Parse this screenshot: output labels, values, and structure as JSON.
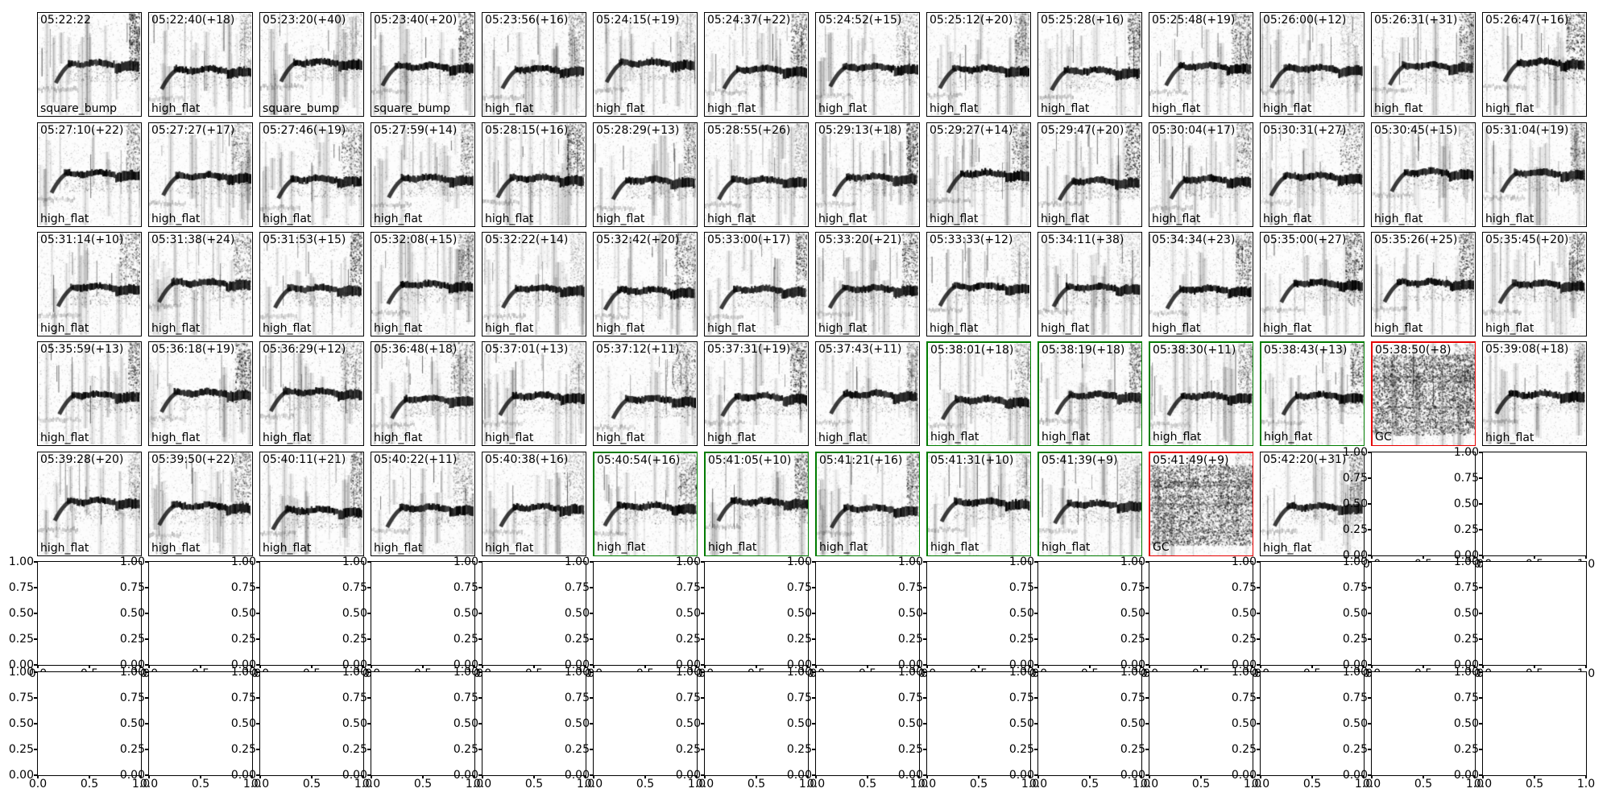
{
  "chart_data": {
    "type": "table",
    "title": "",
    "description": "7x14 grid of subplots: rows 1-5 show noisy grayscale spectrogram thumbnails annotated with a timestamp (top-left) and a class label (bottom-left); some subplots are highlighted with green or red borders (red ones labeled GC). Remaining subplots are empty default 0-1 axes.",
    "grid": {
      "n_rows": 7,
      "n_cols": 14
    },
    "y_ticks": [
      "1.00",
      "0.75",
      "0.50",
      "0.25",
      "0.00"
    ],
    "x_ticks": [
      "0.0",
      "0.5",
      "1.0"
    ],
    "border_colors": {
      "black": "#000000",
      "green": "#007b00",
      "red": "#e60000"
    },
    "rows": [
      {
        "cells": [
          {
            "type": "image",
            "time": "05:22:22",
            "label": "square_bump",
            "border": "black"
          },
          {
            "type": "image",
            "time": "05:22:40(+18)",
            "label": "high_flat",
            "border": "black"
          },
          {
            "type": "image",
            "time": "05:23:20(+40)",
            "label": "square_bump",
            "border": "black"
          },
          {
            "type": "image",
            "time": "05:23:40(+20)",
            "label": "square_bump",
            "border": "black"
          },
          {
            "type": "image",
            "time": "05:23:56(+16)",
            "label": "high_flat",
            "border": "black"
          },
          {
            "type": "image",
            "time": "05:24:15(+19)",
            "label": "high_flat",
            "border": "black"
          },
          {
            "type": "image",
            "time": "05:24:37(+22)",
            "label": "high_flat",
            "border": "black"
          },
          {
            "type": "image",
            "time": "05:24:52(+15)",
            "label": "high_flat",
            "border": "black"
          },
          {
            "type": "image",
            "time": "05:25:12(+20)",
            "label": "high_flat",
            "border": "black"
          },
          {
            "type": "image",
            "time": "05:25:28(+16)",
            "label": "high_flat",
            "border": "black"
          },
          {
            "type": "image",
            "time": "05:25:48(+19)",
            "label": "high_flat",
            "border": "black"
          },
          {
            "type": "image",
            "time": "05:26:00(+12)",
            "label": "high_flat",
            "border": "black"
          },
          {
            "type": "image",
            "time": "05:26:31(+31)",
            "label": "high_flat",
            "border": "black"
          },
          {
            "type": "image",
            "time": "05:26:47(+16)",
            "label": "high_flat",
            "border": "black"
          }
        ]
      },
      {
        "cells": [
          {
            "type": "image",
            "time": "05:27:10(+22)",
            "label": "high_flat",
            "border": "black"
          },
          {
            "type": "image",
            "time": "05:27:27(+17)",
            "label": "high_flat",
            "border": "black"
          },
          {
            "type": "image",
            "time": "05:27:46(+19)",
            "label": "high_flat",
            "border": "black"
          },
          {
            "type": "image",
            "time": "05:27:59(+14)",
            "label": "high_flat",
            "border": "black"
          },
          {
            "type": "image",
            "time": "05:28:15(+16)",
            "label": "high_flat",
            "border": "black"
          },
          {
            "type": "image",
            "time": "05:28:29(+13)",
            "label": "high_flat",
            "border": "black"
          },
          {
            "type": "image",
            "time": "05:28:55(+26)",
            "label": "high_flat",
            "border": "black"
          },
          {
            "type": "image",
            "time": "05:29:13(+18)",
            "label": "high_flat",
            "border": "black"
          },
          {
            "type": "image",
            "time": "05:29:27(+14)",
            "label": "high_flat",
            "border": "black"
          },
          {
            "type": "image",
            "time": "05:29:47(+20)",
            "label": "high_flat",
            "border": "black"
          },
          {
            "type": "image",
            "time": "05:30:04(+17)",
            "label": "high_flat",
            "border": "black"
          },
          {
            "type": "image",
            "time": "05:30:31(+27)",
            "label": "high_flat",
            "border": "black"
          },
          {
            "type": "image",
            "time": "05:30:45(+15)",
            "label": "high_flat",
            "border": "black"
          },
          {
            "type": "image",
            "time": "05:31:04(+19)",
            "label": "high_flat",
            "border": "black"
          }
        ]
      },
      {
        "cells": [
          {
            "type": "image",
            "time": "05:31:14(+10)",
            "label": "high_flat",
            "border": "black"
          },
          {
            "type": "image",
            "time": "05:31:38(+24)",
            "label": "high_flat",
            "border": "black"
          },
          {
            "type": "image",
            "time": "05:31:53(+15)",
            "label": "high_flat",
            "border": "black"
          },
          {
            "type": "image",
            "time": "05:32:08(+15)",
            "label": "high_flat",
            "border": "black"
          },
          {
            "type": "image",
            "time": "05:32:22(+14)",
            "label": "high_flat",
            "border": "black"
          },
          {
            "type": "image",
            "time": "05:32:42(+20)",
            "label": "high_flat",
            "border": "black"
          },
          {
            "type": "image",
            "time": "05:33:00(+17)",
            "label": "high_flat",
            "border": "black"
          },
          {
            "type": "image",
            "time": "05:33:20(+21)",
            "label": "high_flat",
            "border": "black"
          },
          {
            "type": "image",
            "time": "05:33:33(+12)",
            "label": "high_flat",
            "border": "black"
          },
          {
            "type": "image",
            "time": "05:34:11(+38)",
            "label": "high_flat",
            "border": "black"
          },
          {
            "type": "image",
            "time": "05:34:34(+23)",
            "label": "high_flat",
            "border": "black"
          },
          {
            "type": "image",
            "time": "05:35:00(+27)",
            "label": "high_flat",
            "border": "black"
          },
          {
            "type": "image",
            "time": "05:35:26(+25)",
            "label": "high_flat",
            "border": "black"
          },
          {
            "type": "image",
            "time": "05:35:45(+20)",
            "label": "high_flat",
            "border": "black"
          }
        ]
      },
      {
        "cells": [
          {
            "type": "image",
            "time": "05:35:59(+13)",
            "label": "high_flat",
            "border": "black"
          },
          {
            "type": "image",
            "time": "05:36:18(+19)",
            "label": "high_flat",
            "border": "black"
          },
          {
            "type": "image",
            "time": "05:36:29(+12)",
            "label": "high_flat",
            "border": "black"
          },
          {
            "type": "image",
            "time": "05:36:48(+18)",
            "label": "high_flat",
            "border": "black"
          },
          {
            "type": "image",
            "time": "05:37:01(+13)",
            "label": "high_flat",
            "border": "black"
          },
          {
            "type": "image",
            "time": "05:37:12(+11)",
            "label": "high_flat",
            "border": "black"
          },
          {
            "type": "image",
            "time": "05:37:31(+19)",
            "label": "high_flat",
            "border": "black"
          },
          {
            "type": "image",
            "time": "05:37:43(+11)",
            "label": "high_flat",
            "border": "black"
          },
          {
            "type": "image",
            "time": "05:38:01(+18)",
            "label": "high_flat",
            "border": "green"
          },
          {
            "type": "image",
            "time": "05:38:19(+18)",
            "label": "high_flat",
            "border": "green"
          },
          {
            "type": "image",
            "time": "05:38:30(+11)",
            "label": "high_flat",
            "border": "green"
          },
          {
            "type": "image",
            "time": "05:38:43(+13)",
            "label": "high_flat",
            "border": "green"
          },
          {
            "type": "image",
            "time": "05:38:50(+8)",
            "label": "GC",
            "border": "red",
            "variant": "dense"
          },
          {
            "type": "image",
            "time": "05:39:08(+18)",
            "label": "high_flat",
            "border": "black"
          }
        ]
      },
      {
        "cells": [
          {
            "type": "image",
            "time": "05:39:28(+20)",
            "label": "high_flat",
            "border": "black"
          },
          {
            "type": "image",
            "time": "05:39:50(+22)",
            "label": "high_flat",
            "border": "black"
          },
          {
            "type": "image",
            "time": "05:40:11(+21)",
            "label": "high_flat",
            "border": "black"
          },
          {
            "type": "image",
            "time": "05:40:22(+11)",
            "label": "high_flat",
            "border": "black"
          },
          {
            "type": "image",
            "time": "05:40:38(+16)",
            "label": "high_flat",
            "border": "black"
          },
          {
            "type": "image",
            "time": "05:40:54(+16)",
            "label": "high_flat",
            "border": "green"
          },
          {
            "type": "image",
            "time": "05:41:05(+10)",
            "label": "high_flat",
            "border": "green"
          },
          {
            "type": "image",
            "time": "05:41:21(+16)",
            "label": "high_flat",
            "border": "green"
          },
          {
            "type": "image",
            "time": "05:41:31(+10)",
            "label": "high_flat",
            "border": "green"
          },
          {
            "type": "image",
            "time": "05:41:39(+9)",
            "label": "high_flat",
            "border": "green"
          },
          {
            "type": "image",
            "time": "05:41:49(+9)",
            "label": "GC",
            "border": "red",
            "variant": "dense"
          },
          {
            "type": "image",
            "time": "05:42:20(+31)",
            "label": "high_flat",
            "border": "black"
          },
          {
            "type": "empty"
          },
          {
            "type": "empty"
          }
        ]
      },
      {
        "cells": [
          {
            "type": "empty"
          },
          {
            "type": "empty"
          },
          {
            "type": "empty"
          },
          {
            "type": "empty"
          },
          {
            "type": "empty"
          },
          {
            "type": "empty"
          },
          {
            "type": "empty"
          },
          {
            "type": "empty"
          },
          {
            "type": "empty"
          },
          {
            "type": "empty"
          },
          {
            "type": "empty"
          },
          {
            "type": "empty"
          },
          {
            "type": "empty"
          },
          {
            "type": "empty"
          }
        ]
      },
      {
        "cells": [
          {
            "type": "empty"
          },
          {
            "type": "empty"
          },
          {
            "type": "empty"
          },
          {
            "type": "empty"
          },
          {
            "type": "empty"
          },
          {
            "type": "empty"
          },
          {
            "type": "empty"
          },
          {
            "type": "empty"
          },
          {
            "type": "empty"
          },
          {
            "type": "empty"
          },
          {
            "type": "empty"
          },
          {
            "type": "empty"
          },
          {
            "type": "empty"
          },
          {
            "type": "empty"
          }
        ]
      }
    ]
  }
}
